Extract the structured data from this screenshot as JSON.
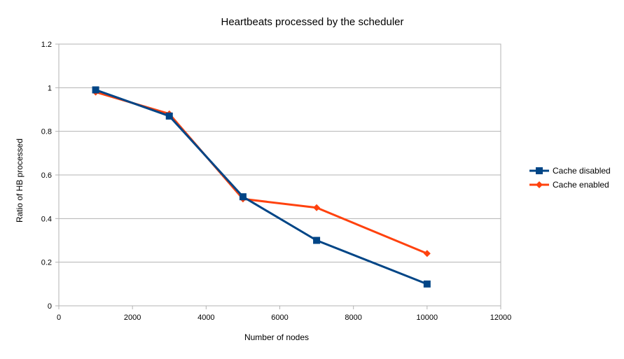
{
  "chart_data": {
    "type": "line",
    "title": "Heartbeats processed by the scheduler",
    "xlabel": "Number of nodes",
    "ylabel": "Ratio of HB processed",
    "xlim": [
      0,
      12000
    ],
    "ylim": [
      0,
      1.2
    ],
    "x_ticks": [
      "0",
      "2000",
      "4000",
      "6000",
      "8000",
      "10000",
      "12000"
    ],
    "y_ticks": [
      "0",
      "0.2",
      "0.4",
      "0.6",
      "0.8",
      "1",
      "1.2"
    ],
    "grid": "horizontal",
    "legend_position": "right",
    "series": [
      {
        "name": "Cache disabled",
        "color": "#004586",
        "marker": "square",
        "x": [
          1000,
          3000,
          5000,
          7000,
          10000
        ],
        "y": [
          0.99,
          0.87,
          0.5,
          0.3,
          0.1
        ]
      },
      {
        "name": "Cache enabled",
        "color": "#ff420e",
        "marker": "diamond",
        "x": [
          1000,
          3000,
          5000,
          7000,
          10000
        ],
        "y": [
          0.98,
          0.88,
          0.49,
          0.45,
          0.24
        ]
      }
    ]
  }
}
